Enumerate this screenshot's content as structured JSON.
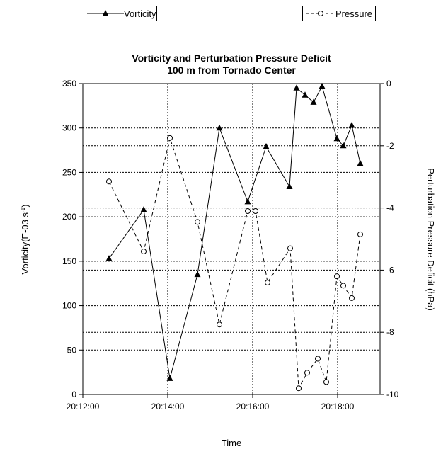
{
  "chart_data": {
    "type": "line",
    "title": "Vorticity and Perturbation Pressure Deficit",
    "subtitle": "100 m from Tornado Center",
    "xlabel": "Time",
    "ylabel": "Vorticity(E-03 s",
    "ylabel_sup": "-1",
    "ylabel_end": ")",
    "y2label": "Perturbation Pressure Deficit (hPa)",
    "x_ticks": [
      "20:12:00",
      "20:14:00",
      "20:16:00",
      "20:18:00"
    ],
    "xlim": [
      "20:12:00",
      "20:19:00"
    ],
    "ylim": [
      0,
      350
    ],
    "y_ticks": [
      "0",
      "50",
      "100",
      "150",
      "200",
      "250",
      "300",
      "350"
    ],
    "y2lim": [
      -10,
      0
    ],
    "y2_ticks": [
      "0",
      "-2",
      "-4",
      "-6",
      "-8",
      "-10"
    ],
    "grid": true,
    "legend": "top",
    "series": [
      {
        "name": "Vorticity",
        "axis": "left",
        "style": "solid",
        "marker": "filled-triangle",
        "color": "#000000",
        "points": [
          [
            "20:12:37",
            153
          ],
          [
            "20:13:26",
            208
          ],
          [
            "20:14:03",
            18
          ],
          [
            "20:14:42",
            135
          ],
          [
            "20:15:13",
            300
          ],
          [
            "20:15:53",
            217
          ],
          [
            "20:16:19",
            279
          ],
          [
            "20:16:52",
            234
          ],
          [
            "20:17:02",
            345
          ],
          [
            "20:17:14",
            337
          ],
          [
            "20:17:26",
            329
          ],
          [
            "20:17:38",
            347
          ],
          [
            "20:17:59",
            288
          ],
          [
            "20:18:08",
            280
          ],
          [
            "20:18:20",
            303
          ],
          [
            "20:18:32",
            260
          ]
        ]
      },
      {
        "name": "Pressure",
        "axis": "right",
        "style": "dashed",
        "marker": "open-circle",
        "color": "#000000",
        "points": [
          [
            "20:12:37",
            -3.15
          ],
          [
            "20:13:26",
            -5.4
          ],
          [
            "20:14:03",
            -1.75
          ],
          [
            "20:14:42",
            -4.45
          ],
          [
            "20:15:13",
            -7.75
          ],
          [
            "20:15:53",
            -4.1
          ],
          [
            "20:16:04",
            -4.1
          ],
          [
            "20:16:21",
            -6.4
          ],
          [
            "20:16:53",
            -5.3
          ],
          [
            "20:17:05",
            -9.8
          ],
          [
            "20:17:17",
            -9.3
          ],
          [
            "20:17:32",
            -8.85
          ],
          [
            "20:17:44",
            -9.6
          ],
          [
            "20:17:59",
            -6.2
          ],
          [
            "20:18:08",
            -6.5
          ],
          [
            "20:18:20",
            -6.9
          ],
          [
            "20:18:32",
            -4.85
          ]
        ]
      }
    ]
  }
}
